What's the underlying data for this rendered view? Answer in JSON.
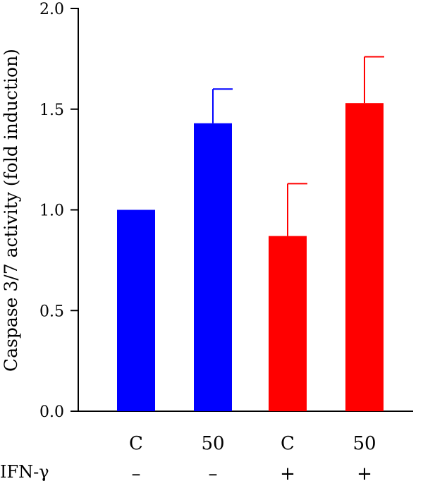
{
  "chart_data": {
    "type": "bar",
    "title": "",
    "xlabel": "",
    "ylabel": "Caspase 3/7 activity (fold induction)",
    "ylim": [
      0,
      2.0
    ],
    "yticks": [
      "0.0",
      "0.5",
      "1.0",
      "1.5",
      "2.0"
    ],
    "ytick_values": [
      0,
      0.5,
      1.0,
      1.5,
      2.0
    ],
    "categories": [
      "C",
      "50",
      "C",
      "50"
    ],
    "values": [
      1.0,
      1.43,
      0.87,
      1.53
    ],
    "errors": [
      0,
      0.17,
      0.26,
      0.23
    ],
    "colors": [
      "#0000ff",
      "#0000ff",
      "#ff0000",
      "#ff0000"
    ],
    "factor": {
      "label": "IFN-γ",
      "levels": [
        "–",
        "–",
        "+",
        "+"
      ]
    },
    "grid": false,
    "legend": "none"
  }
}
